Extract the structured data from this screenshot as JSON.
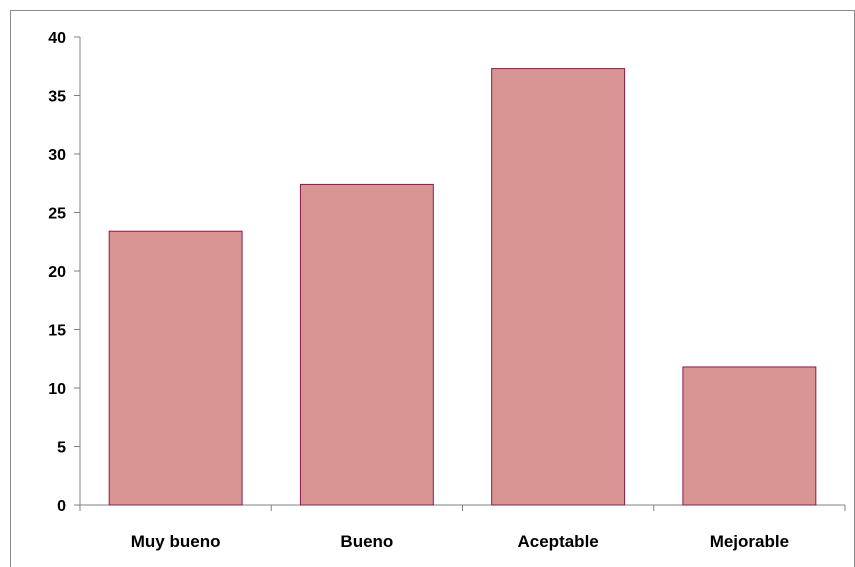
{
  "chart_data": {
    "type": "bar",
    "title": "",
    "xlabel": "",
    "ylabel": "",
    "categories": [
      "Muy bueno",
      "Bueno",
      "Aceptable",
      "Mejorable"
    ],
    "values": [
      23.4,
      27.4,
      37.3,
      11.8
    ],
    "ylim": [
      0,
      40
    ],
    "yticks": [
      "0",
      "5",
      "10",
      "15",
      "20",
      "25",
      "30",
      "35",
      "40"
    ],
    "grid": false,
    "legend": "none",
    "colors": {
      "bar_fill": "#d99594",
      "bar_stroke": "#8b1a4a",
      "axis": "#808080"
    }
  }
}
